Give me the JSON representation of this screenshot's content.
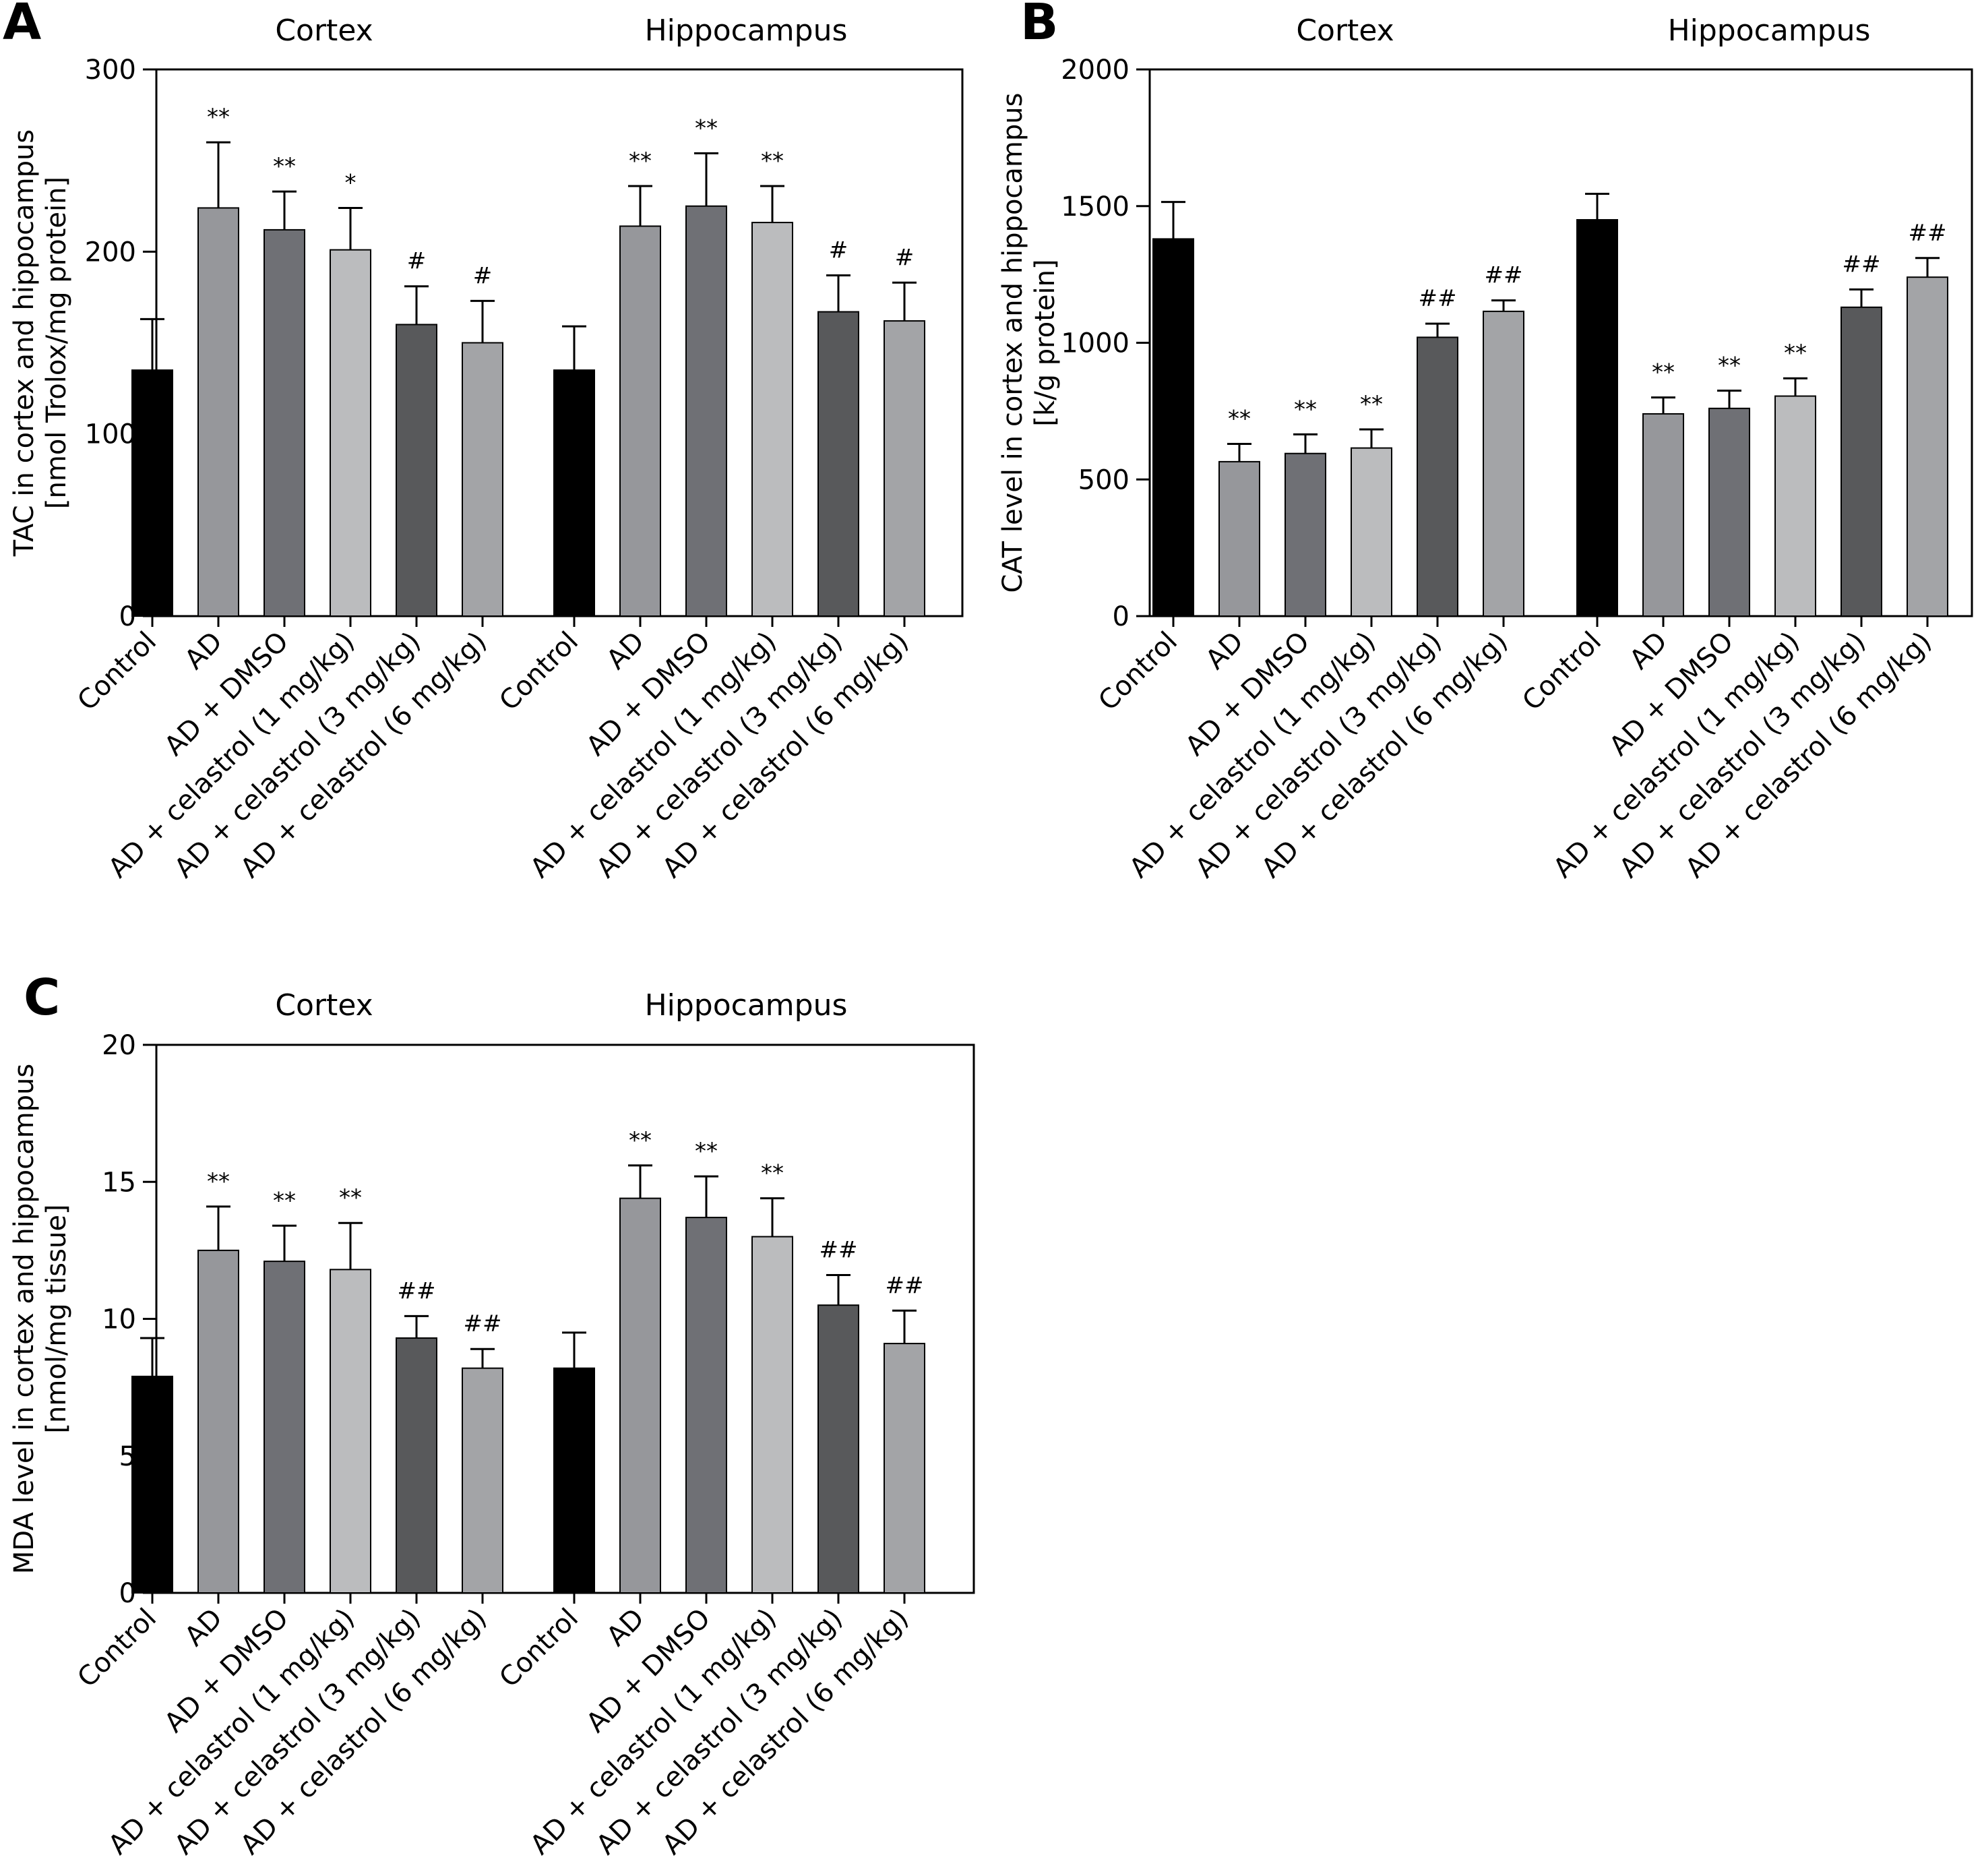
{
  "figure": {
    "panels": [
      {
        "letter": "A"
      },
      {
        "letter": "B"
      },
      {
        "letter": "C"
      }
    ]
  },
  "colors": {
    "bar_fills": [
      "#000000",
      "#96979b",
      "#6f7075",
      "#bbbcbe",
      "#58595b",
      "#a3a4a7"
    ],
    "axis": "#000000"
  },
  "chart_data": [
    {
      "panel": "A",
      "type": "bar",
      "error_bars": "upper",
      "ylabel": [
        "TAC in cortex and hippocampus",
        "[nmol Trolox/mg protein]"
      ],
      "ylim": [
        0,
        300
      ],
      "yticks": [
        0,
        100,
        200,
        300
      ],
      "categories": [
        "Control",
        "AD",
        "AD + DMSO",
        "AD + celastrol (1 mg/kg)",
        "AD + celastrol (3 mg/kg)",
        "AD + celastrol (6 mg/kg)"
      ],
      "groups": [
        {
          "title": "Cortex",
          "values": [
            135,
            224,
            212,
            201,
            160,
            150
          ],
          "errors": [
            28,
            36,
            21,
            23,
            21,
            23
          ],
          "significance": [
            "",
            "**",
            "**",
            "*",
            "#",
            "#"
          ]
        },
        {
          "title": "Hippocampus",
          "values": [
            135,
            214,
            225,
            216,
            167,
            162
          ],
          "errors": [
            24,
            22,
            29,
            20,
            20,
            21
          ],
          "significance": [
            "",
            "**",
            "**",
            "**",
            "#",
            "#"
          ]
        }
      ]
    },
    {
      "panel": "B",
      "type": "bar",
      "error_bars": "upper",
      "ylabel": [
        "CAT level in cortex and hippocampus",
        "[k/g protein]"
      ],
      "ylim": [
        0,
        2000
      ],
      "yticks": [
        0,
        500,
        1000,
        1500,
        2000
      ],
      "categories": [
        "Control",
        "AD",
        "AD + DMSO",
        "AD + celastrol (1 mg/kg)",
        "AD + celastrol (3 mg/kg)",
        "AD + celastrol (6 mg/kg)"
      ],
      "groups": [
        {
          "title": "Cortex",
          "values": [
            1380,
            565,
            595,
            615,
            1020,
            1115
          ],
          "errors": [
            135,
            65,
            70,
            68,
            50,
            40
          ],
          "significance": [
            "",
            "**",
            "**",
            "**",
            "##",
            "##"
          ]
        },
        {
          "title": "Hippocampus",
          "values": [
            1450,
            740,
            760,
            805,
            1130,
            1240
          ],
          "errors": [
            95,
            60,
            65,
            65,
            65,
            70
          ],
          "significance": [
            "",
            "**",
            "**",
            "**",
            "##",
            "##"
          ]
        }
      ]
    },
    {
      "panel": "C",
      "type": "bar",
      "error_bars": "upper",
      "ylabel": [
        "MDA level in cortex and hippocampus",
        "[nmol/mg tissue]"
      ],
      "ylim": [
        0,
        20
      ],
      "yticks": [
        0,
        5,
        10,
        15,
        20
      ],
      "categories": [
        "Control",
        "AD",
        "AD + DMSO",
        "AD + celastrol (1 mg/kg)",
        "AD + celastrol (3 mg/kg)",
        "AD + celastrol (6 mg/kg)"
      ],
      "groups": [
        {
          "title": "Cortex",
          "values": [
            7.9,
            12.5,
            12.1,
            11.8,
            9.3,
            8.2
          ],
          "errors": [
            1.4,
            1.6,
            1.3,
            1.7,
            0.8,
            0.7
          ],
          "significance": [
            "",
            "**",
            "**",
            "**",
            "##",
            "##"
          ]
        },
        {
          "title": "Hippocampus",
          "values": [
            8.2,
            14.4,
            13.7,
            13.0,
            10.5,
            9.1
          ],
          "errors": [
            1.3,
            1.2,
            1.5,
            1.4,
            1.1,
            1.2
          ],
          "significance": [
            "",
            "**",
            "**",
            "**",
            "##",
            "##"
          ]
        }
      ]
    }
  ]
}
